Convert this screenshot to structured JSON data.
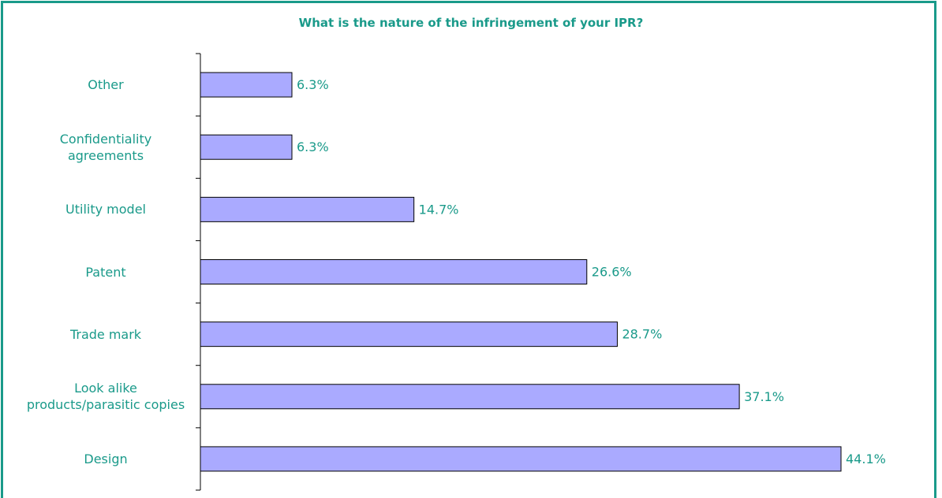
{
  "chart_data": {
    "type": "bar",
    "orientation": "horizontal",
    "title": "What is the nature of the infringement of your IPR?",
    "categories": [
      "Other",
      "Confidentiality agreements",
      "Utility model",
      "Patent",
      "Trade mark",
      "Look alike products/parasitic copies",
      "Design"
    ],
    "values": [
      6.3,
      6.3,
      14.7,
      26.6,
      28.7,
      37.1,
      44.1
    ],
    "value_labels": [
      "6.3%",
      "6.3%",
      "14.7%",
      "26.6%",
      "28.7%",
      "37.1%",
      "44.1%"
    ],
    "color": "#aaaaff"
  }
}
